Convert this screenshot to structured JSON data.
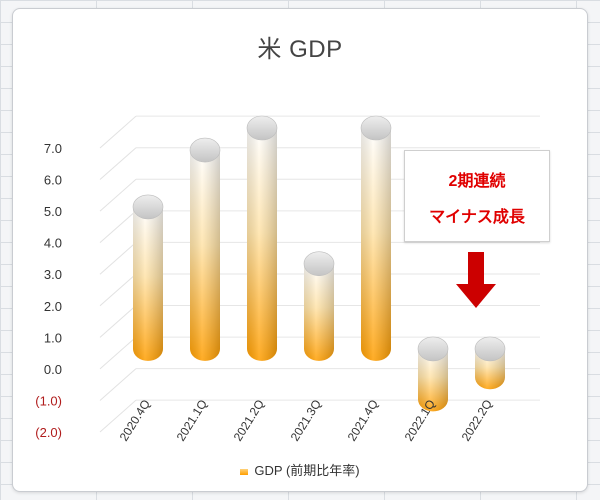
{
  "chart_data": {
    "type": "bar",
    "title": "米 GDP",
    "categories": [
      "2020.4Q",
      "2021.1Q",
      "2021.2Q",
      "2021.3Q",
      "2021.4Q",
      "2022.1Q",
      "2022.2Q"
    ],
    "series": [
      {
        "name": "GDP (前期比年率)",
        "values": [
          4.5,
          6.3,
          7.0,
          2.7,
          7.0,
          -1.6,
          -0.9
        ]
      }
    ],
    "ylim": [
      -2.0,
      7.0
    ],
    "yticks": [
      "7.0",
      "6.0",
      "5.0",
      "4.0",
      "3.0",
      "2.0",
      "1.0",
      "0.0",
      "(1.0)",
      "(2.0)"
    ],
    "grid": true,
    "legend": "bottom",
    "bar_colors": {
      "light": "#ffffff",
      "mid": "#ffd27a",
      "base": "#ff9e00",
      "cap": "#d4d4d4"
    },
    "annotation": {
      "line1": "2期連続",
      "line2": "マイナス成長",
      "color": "#e00000"
    },
    "arrow_color": "#cc0000"
  }
}
